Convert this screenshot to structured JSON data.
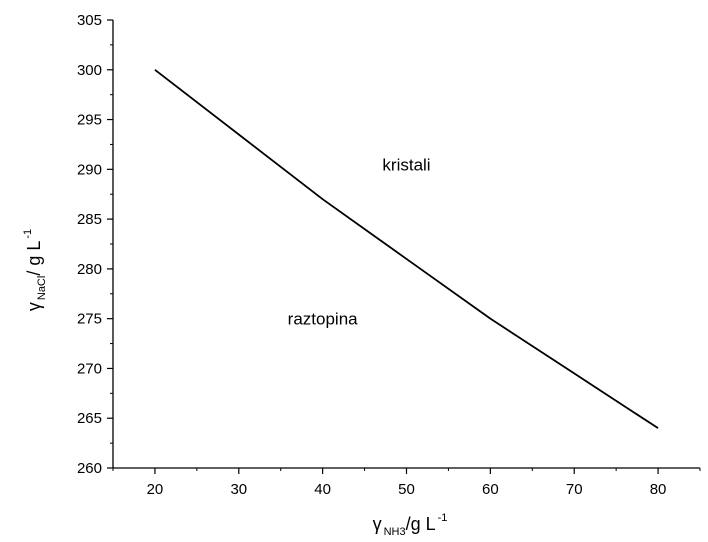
{
  "chart_data": {
    "type": "line",
    "xlim": [
      15,
      85
    ],
    "ylim": [
      260,
      305
    ],
    "xticks": [
      20,
      30,
      40,
      50,
      60,
      70,
      80
    ],
    "yticks": [
      260,
      265,
      270,
      275,
      280,
      285,
      290,
      295,
      300,
      305
    ],
    "grid": false,
    "series": [
      {
        "x": [
          20,
          30,
          40,
          50,
          60,
          70,
          80
        ],
        "y": [
          300,
          293.5,
          287,
          281,
          275,
          269.5,
          264
        ]
      }
    ],
    "xlabel": {
      "symbol": "γ",
      "subscript": "NH3",
      "unit": "/g L",
      "superscript": "-1"
    },
    "ylabel": {
      "symbol": "γ",
      "subscript": "NaCl",
      "unit": "/ g L",
      "superscript": "-1"
    },
    "annotations": [
      {
        "text": "kristali",
        "x": 50,
        "y": 290.5
      },
      {
        "text": "raztopina",
        "x": 40,
        "y": 275
      }
    ]
  }
}
